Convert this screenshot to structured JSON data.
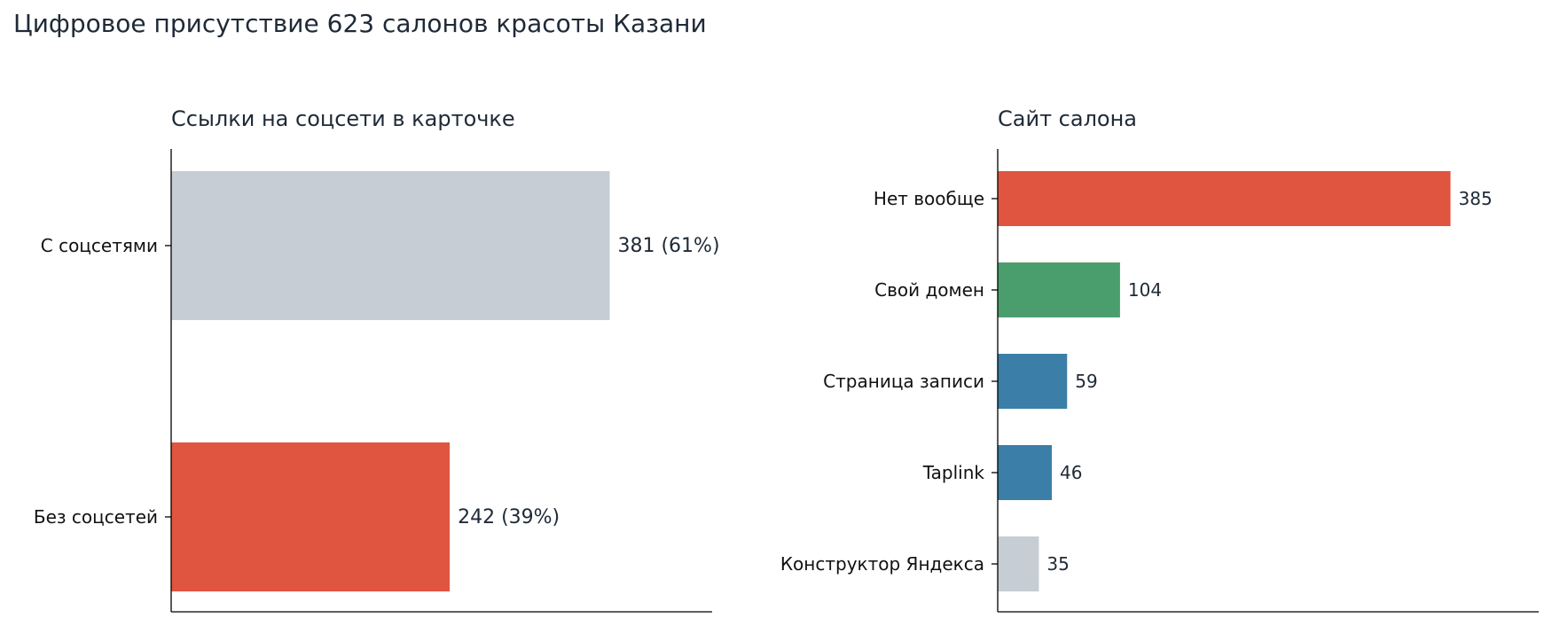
{
  "title": "Цифровое присутствие 623 салонов красоты Казани",
  "colors": {
    "red": "#e05540",
    "gray": "#c6cdd4",
    "green": "#4a9e6e",
    "blue": "#3b7ea8",
    "text": "#1f2a37"
  },
  "chart_data": [
    {
      "type": "bar",
      "orientation": "horizontal",
      "title": "Ссылки на соцсети в карточке",
      "categories": [
        "С соцсетями",
        "Без соцсетей"
      ],
      "values": [
        381,
        242
      ],
      "value_labels": [
        "381  (61%)",
        "242  (39%)"
      ],
      "bar_colors": [
        "#c6cdd4",
        "#e05540"
      ],
      "xlim": [
        0,
        470
      ],
      "xlabel": "",
      "ylabel": "",
      "grid": false
    },
    {
      "type": "bar",
      "orientation": "horizontal",
      "title": "Сайт салона",
      "categories": [
        "Нет вообще",
        "Свой домен",
        "Страница записи",
        "Taplink",
        "Конструктор Яндекса"
      ],
      "values": [
        385,
        104,
        59,
        46,
        35
      ],
      "value_labels": [
        "385",
        "104",
        "59",
        "46",
        "35"
      ],
      "bar_colors": [
        "#e05540",
        "#4a9e6e",
        "#3b7ea8",
        "#3b7ea8",
        "#c6cdd4"
      ],
      "xlim": [
        0,
        460
      ],
      "xlabel": "",
      "ylabel": "",
      "grid": false
    }
  ]
}
